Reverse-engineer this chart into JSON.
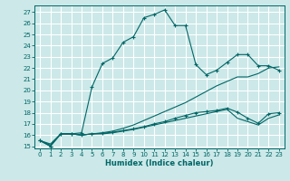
{
  "xlabel": "Humidex (Indice chaleur)",
  "bg_color": "#cce8e8",
  "grid_color": "#ffffff",
  "line_color": "#006666",
  "xlim": [
    -0.5,
    23.5
  ],
  "ylim": [
    14.8,
    27.6
  ],
  "yticks": [
    15,
    16,
    17,
    18,
    19,
    20,
    21,
    22,
    23,
    24,
    25,
    26,
    27
  ],
  "xticks": [
    0,
    1,
    2,
    3,
    4,
    5,
    6,
    7,
    8,
    9,
    10,
    11,
    12,
    13,
    14,
    15,
    16,
    17,
    18,
    19,
    20,
    21,
    22,
    23
  ],
  "line1_x": [
    0,
    1,
    2,
    3,
    4,
    5,
    6,
    7,
    8,
    9,
    10,
    11,
    12,
    13,
    14,
    15,
    16,
    17,
    18,
    19,
    20,
    21,
    22,
    23
  ],
  "line1_y": [
    15.5,
    15.0,
    16.1,
    16.1,
    16.2,
    20.3,
    22.4,
    22.9,
    24.3,
    24.8,
    26.5,
    26.8,
    27.2,
    25.8,
    25.8,
    22.3,
    21.4,
    21.8,
    22.5,
    23.2,
    23.2,
    22.2,
    22.2,
    21.8
  ],
  "line2_x": [
    0,
    1,
    2,
    3,
    4,
    5,
    6,
    7,
    8,
    9,
    10,
    11,
    12,
    13,
    14,
    15,
    16,
    17,
    18,
    19,
    20,
    21,
    22,
    23
  ],
  "line2_y": [
    15.5,
    15.0,
    16.1,
    16.1,
    16.0,
    16.1,
    16.15,
    16.25,
    16.4,
    16.55,
    16.75,
    17.0,
    17.2,
    17.5,
    17.75,
    18.0,
    18.1,
    18.2,
    18.4,
    18.05,
    17.5,
    17.05,
    17.9,
    18.0
  ],
  "line3_x": [
    0,
    1,
    2,
    3,
    4,
    5,
    6,
    7,
    8,
    9,
    10,
    11,
    12,
    13,
    14,
    15,
    16,
    17,
    18,
    19,
    20,
    21,
    22,
    23
  ],
  "line3_y": [
    15.5,
    15.2,
    16.1,
    16.1,
    16.0,
    16.1,
    16.2,
    16.35,
    16.6,
    16.9,
    17.3,
    17.7,
    18.1,
    18.5,
    18.9,
    19.4,
    19.9,
    20.4,
    20.8,
    21.2,
    21.2,
    21.5,
    22.0,
    22.1
  ],
  "line4_x": [
    0,
    1,
    2,
    3,
    4,
    5,
    6,
    7,
    8,
    9,
    10,
    11,
    12,
    13,
    14,
    15,
    16,
    17,
    18,
    19,
    20,
    21,
    22,
    23
  ],
  "line4_y": [
    15.5,
    15.1,
    16.1,
    16.1,
    16.0,
    16.1,
    16.1,
    16.2,
    16.35,
    16.5,
    16.7,
    16.9,
    17.1,
    17.3,
    17.5,
    17.7,
    17.9,
    18.1,
    18.3,
    17.5,
    17.2,
    16.9,
    17.5,
    17.8
  ]
}
